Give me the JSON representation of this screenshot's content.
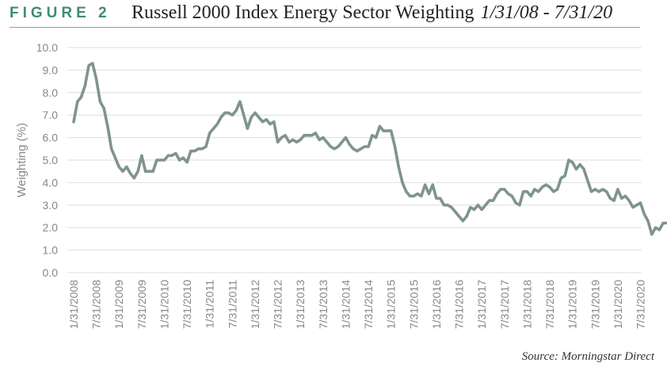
{
  "header": {
    "figure_label": "FIGURE 2",
    "title": "Russell 2000 Index Energy Sector Weighting",
    "date_range": "1/31/08 - 7/31/20"
  },
  "source": "Source: Morningstar Direct",
  "colors": {
    "accent": "#3f8c79",
    "line": "#7f948e",
    "grid": "#dedede",
    "axis_text": "#888888"
  },
  "chart_data": {
    "type": "line",
    "title": "Russell 2000 Index Energy Sector Weighting",
    "xlabel": "",
    "ylabel": "Weighting (%)",
    "ylim": [
      0,
      10
    ],
    "yticks": [
      "0.0",
      "1.0",
      "2.0",
      "3.0",
      "4.0",
      "5.0",
      "6.0",
      "7.0",
      "8.0",
      "9.0",
      "10.0"
    ],
    "xticks": [
      "1/31/2008",
      "7/31/2008",
      "1/31/2009",
      "7/31/2009",
      "1/31/2010",
      "7/31/2010",
      "1/31/2011",
      "7/31/2011",
      "1/31/2012",
      "7/31/2012",
      "1/31/2013",
      "7/31/2013",
      "1/31/2014",
      "7/31/2014",
      "1/31/2015",
      "7/31/2015",
      "1/31/2016",
      "7/31/2016",
      "1/31/2017",
      "7/31/2017",
      "1/31/2018",
      "7/31/2018",
      "1/31/2019",
      "7/31/2019",
      "1/31/2020",
      "7/31/2020"
    ],
    "grid": true,
    "x_start": "1/31/2008",
    "x_end": "7/31/2020",
    "series": [
      {
        "name": "Energy Sector Weighting",
        "frequency": "monthly",
        "values": [
          6.7,
          7.6,
          7.8,
          8.3,
          9.2,
          9.3,
          8.6,
          7.6,
          7.3,
          6.5,
          5.5,
          5.1,
          4.7,
          4.5,
          4.7,
          4.4,
          4.2,
          4.5,
          5.2,
          4.5,
          4.5,
          4.5,
          5.0,
          5.0,
          5.0,
          5.2,
          5.2,
          5.3,
          5.0,
          5.1,
          4.9,
          5.4,
          5.4,
          5.5,
          5.5,
          5.6,
          6.2,
          6.4,
          6.6,
          6.9,
          7.1,
          7.1,
          7.0,
          7.2,
          7.6,
          7.0,
          6.4,
          6.9,
          7.1,
          6.9,
          6.7,
          6.8,
          6.6,
          6.7,
          5.8,
          6.0,
          6.1,
          5.8,
          5.9,
          5.8,
          5.9,
          6.1,
          6.1,
          6.1,
          6.2,
          5.9,
          6.0,
          5.8,
          5.6,
          5.5,
          5.6,
          5.8,
          6.0,
          5.7,
          5.5,
          5.4,
          5.5,
          5.6,
          5.6,
          6.1,
          6.0,
          6.5,
          6.3,
          6.3,
          6.3,
          5.6,
          4.7,
          4.0,
          3.6,
          3.4,
          3.4,
          3.5,
          3.4,
          3.9,
          3.5,
          3.9,
          3.3,
          3.3,
          3.0,
          3.0,
          2.9,
          2.7,
          2.5,
          2.3,
          2.5,
          2.9,
          2.8,
          3.0,
          2.8,
          3.0,
          3.2,
          3.2,
          3.5,
          3.7,
          3.7,
          3.5,
          3.4,
          3.1,
          3.0,
          3.6,
          3.6,
          3.4,
          3.7,
          3.6,
          3.8,
          3.9,
          3.8,
          3.6,
          3.7,
          4.2,
          4.3,
          5.0,
          4.9,
          4.6,
          4.8,
          4.6,
          4.1,
          3.6,
          3.7,
          3.6,
          3.7,
          3.6,
          3.3,
          3.2,
          3.7,
          3.3,
          3.4,
          3.2,
          2.9,
          3.0,
          3.1,
          2.6,
          2.3,
          1.7,
          2.0,
          1.9,
          2.2,
          2.2
        ]
      }
    ]
  }
}
